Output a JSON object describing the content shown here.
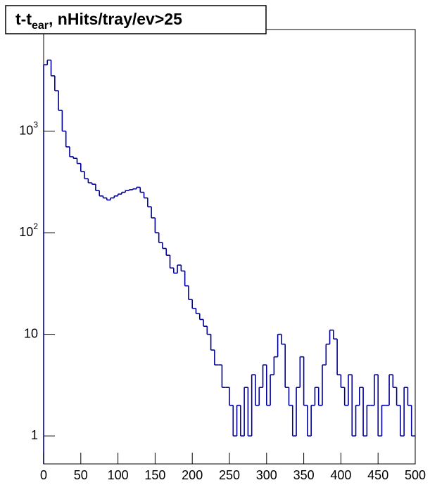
{
  "chart_data": {
    "type": "histogram",
    "title": [
      "t-t",
      "ear",
      ", nHits/tray/ev>25"
    ],
    "bins": [
      0,
      5,
      10,
      15,
      20,
      25,
      30,
      35,
      40,
      45,
      50,
      55,
      60,
      65,
      70,
      75,
      80,
      85,
      90,
      95,
      100,
      105,
      110,
      115,
      120,
      125,
      130,
      135,
      140,
      145,
      150,
      155,
      160,
      165,
      170,
      175,
      180,
      185,
      190,
      195,
      200,
      205,
      210,
      215,
      220,
      225,
      230,
      235,
      240,
      245,
      250,
      255,
      260,
      265,
      270,
      275,
      280,
      285,
      290,
      295,
      300,
      305,
      310,
      315,
      320,
      325,
      330,
      335,
      340,
      345,
      350,
      355,
      360,
      365,
      370,
      375,
      380,
      385,
      390,
      395,
      400,
      405,
      410,
      415,
      420,
      425,
      430,
      435,
      440,
      445,
      450,
      455,
      460,
      465,
      470,
      475,
      480,
      485,
      490,
      495,
      500
    ],
    "counts": [
      4500,
      5000,
      3500,
      2500,
      1600,
      1000,
      700,
      560,
      540,
      480,
      400,
      340,
      310,
      300,
      260,
      230,
      220,
      210,
      220,
      230,
      240,
      250,
      260,
      265,
      270,
      280,
      250,
      220,
      180,
      140,
      100,
      80,
      70,
      60,
      45,
      40,
      48,
      42,
      30,
      22,
      18,
      16,
      14,
      12,
      10,
      7,
      5,
      5,
      3,
      3,
      2,
      1,
      2,
      1,
      3,
      1,
      4,
      2,
      3,
      5,
      2,
      4,
      6,
      10,
      8,
      3,
      2,
      1,
      3,
      6,
      2,
      1,
      2,
      3,
      2,
      5,
      8,
      11,
      9,
      4,
      3,
      2,
      4,
      1,
      2,
      3,
      1,
      2,
      2,
      4,
      1,
      2,
      2,
      4,
      3,
      2,
      1,
      3,
      2,
      1
    ],
    "color": "#000099",
    "xlim": [
      0,
      500
    ],
    "xticks": [
      0,
      50,
      100,
      150,
      200,
      250,
      300,
      350,
      400,
      450,
      500
    ],
    "ylim": [
      0.53,
      10000
    ],
    "ylog": true,
    "yticks": [
      1,
      10,
      {
        "value": 100,
        "label": "10",
        "exponent": "2"
      },
      {
        "value": 1000,
        "label": "10",
        "exponent": "3"
      }
    ]
  }
}
